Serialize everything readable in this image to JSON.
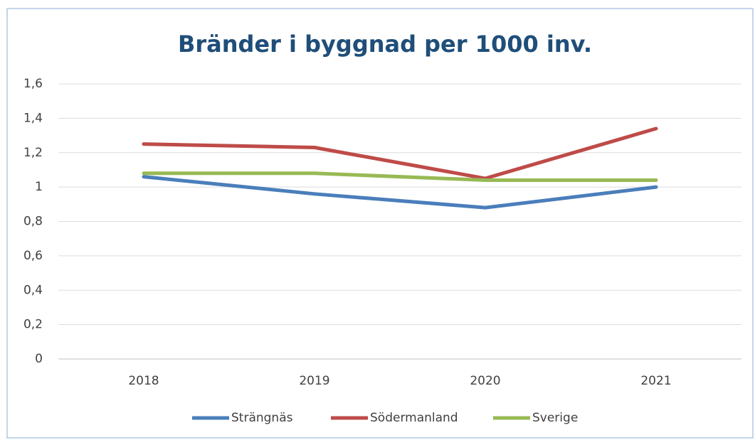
{
  "chart_data": {
    "type": "line",
    "title": "Bränder i byggnad per 1000 inv.",
    "categories": [
      "2018",
      "2019",
      "2020",
      "2021"
    ],
    "series": [
      {
        "name": "Strängnäs",
        "color": "#4a7ebb",
        "values": [
          1.06,
          0.96,
          0.88,
          1.0
        ]
      },
      {
        "name": "Södermanland",
        "color": "#be4b48",
        "values": [
          1.25,
          1.23,
          1.05,
          1.34
        ]
      },
      {
        "name": "Sverige",
        "color": "#98b954",
        "values": [
          1.08,
          1.08,
          1.04,
          1.04
        ]
      }
    ],
    "ylim": [
      0,
      1.6
    ],
    "yticks": [
      0,
      {
        "value": 0.2,
        "label": "0,2"
      },
      {
        "value": 0.4,
        "label": "0,4"
      },
      {
        "value": 0.6,
        "label": "0,6"
      },
      {
        "value": 0.8,
        "label": "0,8"
      },
      1,
      {
        "value": 1.2,
        "label": "1,2"
      },
      {
        "value": 1.4,
        "label": "1,4"
      },
      {
        "value": 1.6,
        "label": "1,6"
      }
    ],
    "grid": true,
    "legend": "bottom"
  }
}
